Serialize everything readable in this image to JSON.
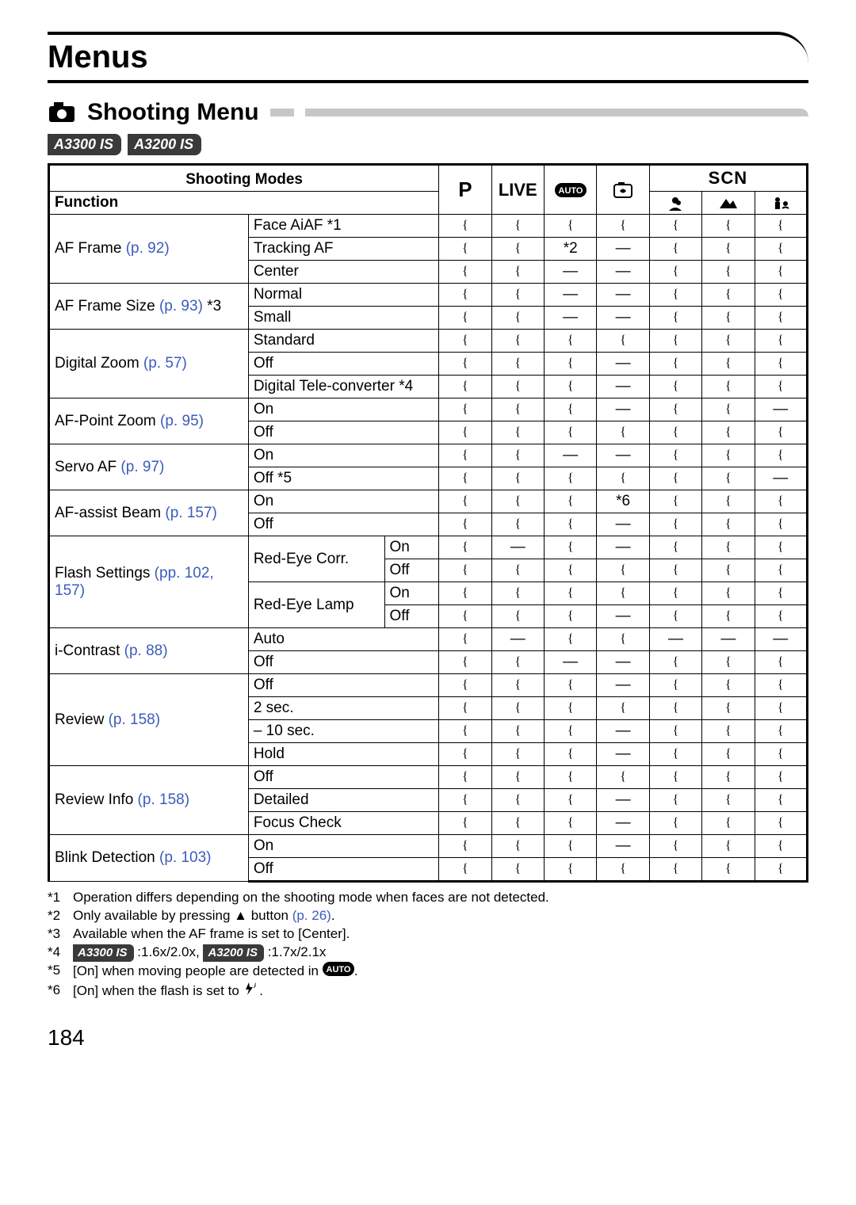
{
  "page": {
    "title": "Menus",
    "section": "Shooting Menu",
    "pageNumber": "184"
  },
  "models": [
    "A3300 IS",
    "A3200 IS"
  ],
  "header": {
    "shootingModes": "Shooting Modes",
    "function": "Function",
    "scn": "SCN",
    "P": "P",
    "live": "LIVE"
  },
  "symbols": {
    "circle": "{",
    "dash": "—"
  },
  "functions": [
    {
      "name": "AF Frame",
      "page": "(p. 92)",
      "options": [
        {
          "label": "Face AiAF *1",
          "vals": [
            "O",
            "O",
            "O",
            "O",
            "O",
            "O",
            "O"
          ]
        },
        {
          "label": "Tracking AF",
          "vals": [
            "O",
            "O",
            "*2",
            "-",
            "O",
            "O",
            "O"
          ]
        },
        {
          "label": "Center",
          "vals": [
            "O",
            "O",
            "-",
            "-",
            "O",
            "O",
            "O"
          ]
        }
      ]
    },
    {
      "name": "AF Frame Size",
      "page": "(p. 93)",
      "suffix": " *3",
      "options": [
        {
          "label": "Normal",
          "vals": [
            "O",
            "O",
            "-",
            "-",
            "O",
            "O",
            "O"
          ]
        },
        {
          "label": "Small",
          "vals": [
            "O",
            "O",
            "-",
            "-",
            "O",
            "O",
            "O"
          ]
        }
      ]
    },
    {
      "name": "Digital Zoom",
      "page": "(p. 57)",
      "options": [
        {
          "label": "Standard",
          "vals": [
            "O",
            "O",
            "O",
            "O",
            "O",
            "O",
            "O"
          ]
        },
        {
          "label": "Off",
          "vals": [
            "O",
            "O",
            "O",
            "-",
            "O",
            "O",
            "O"
          ]
        },
        {
          "label": "Digital Tele-converter *4",
          "vals": [
            "O",
            "O",
            "O",
            "-",
            "O",
            "O",
            "O"
          ]
        }
      ]
    },
    {
      "name": "AF-Point Zoom",
      "page": "(p. 95)",
      "options": [
        {
          "label": "On",
          "vals": [
            "O",
            "O",
            "O",
            "-",
            "O",
            "O",
            "-"
          ]
        },
        {
          "label": "Off",
          "vals": [
            "O",
            "O",
            "O",
            "O",
            "O",
            "O",
            "O"
          ]
        }
      ]
    },
    {
      "name": "Servo AF",
      "page": "(p. 97)",
      "options": [
        {
          "label": "On",
          "vals": [
            "O",
            "O",
            "-",
            "-",
            "O",
            "O",
            "O"
          ]
        },
        {
          "label": "Off *5",
          "vals": [
            "O",
            "O",
            "O",
            "O",
            "O",
            "O",
            "-"
          ]
        }
      ]
    },
    {
      "name": "AF-assist Beam",
      "page": "(p. 157)",
      "options": [
        {
          "label": "On",
          "vals": [
            "O",
            "O",
            "O",
            "*6",
            "O",
            "O",
            "O"
          ]
        },
        {
          "label": "Off",
          "vals": [
            "O",
            "O",
            "O",
            "-",
            "O",
            "O",
            "O"
          ]
        }
      ]
    },
    {
      "name": "Flash Settings",
      "page": "(pp. 102, 157)",
      "sub": [
        {
          "sublabel": "Red-Eye Corr.",
          "lines": [
            {
              "label": "On",
              "vals": [
                "O",
                "-",
                "O",
                "-",
                "O",
                "O",
                "O"
              ]
            },
            {
              "label": "Off",
              "vals": [
                "O",
                "O",
                "O",
                "O",
                "O",
                "O",
                "O"
              ]
            }
          ]
        },
        {
          "sublabel": "Red-Eye Lamp",
          "lines": [
            {
              "label": "On",
              "vals": [
                "O",
                "O",
                "O",
                "O",
                "O",
                "O",
                "O"
              ]
            },
            {
              "label": "Off",
              "vals": [
                "O",
                "O",
                "O",
                "-",
                "O",
                "O",
                "O"
              ]
            }
          ]
        }
      ]
    },
    {
      "name": "i-Contrast",
      "page": "(p. 88)",
      "options": [
        {
          "label": "Auto",
          "vals": [
            "O",
            "-",
            "O",
            "O",
            "-",
            "-",
            "-"
          ]
        },
        {
          "label": "Off",
          "vals": [
            "O",
            "O",
            "-",
            "-",
            "O",
            "O",
            "O"
          ]
        }
      ]
    },
    {
      "name": "Review",
      "page": "(p. 158)",
      "options": [
        {
          "label": "Off",
          "vals": [
            "O",
            "O",
            "O",
            "-",
            "O",
            "O",
            "O"
          ]
        },
        {
          "label": "2 sec.",
          "vals": [
            "O",
            "O",
            "O",
            "O",
            "O",
            "O",
            "O"
          ]
        },
        {
          "label": "– 10 sec.",
          "vals": [
            "O",
            "O",
            "O",
            "-",
            "O",
            "O",
            "O"
          ]
        },
        {
          "label": "Hold",
          "vals": [
            "O",
            "O",
            "O",
            "-",
            "O",
            "O",
            "O"
          ]
        }
      ]
    },
    {
      "name": "Review Info",
      "page": "(p. 158)",
      "options": [
        {
          "label": "Off",
          "vals": [
            "O",
            "O",
            "O",
            "O",
            "O",
            "O",
            "O"
          ]
        },
        {
          "label": "Detailed",
          "vals": [
            "O",
            "O",
            "O",
            "-",
            "O",
            "O",
            "O"
          ]
        },
        {
          "label": "Focus Check",
          "vals": [
            "O",
            "O",
            "O",
            "-",
            "O",
            "O",
            "O"
          ]
        }
      ]
    },
    {
      "name": "Blink Detection",
      "page": "(p. 103)",
      "options": [
        {
          "label": "On",
          "vals": [
            "O",
            "O",
            "O",
            "-",
            "O",
            "O",
            "O"
          ]
        },
        {
          "label": "Off",
          "vals": [
            "O",
            "O",
            "O",
            "O",
            "O",
            "O",
            "O"
          ]
        }
      ]
    }
  ],
  "footnotes": [
    {
      "idx": "*1",
      "text": "Operation differs depending on the shooting mode when faces are not detected."
    },
    {
      "idx": "*2",
      "text": "Only available by pressing ▲ button ",
      "page": "(p. 26)",
      "tail": "."
    },
    {
      "idx": "*3",
      "text": "Available when the AF frame is set to [Center]."
    },
    {
      "idx": "*4",
      "badges": true,
      "b1": "A3300 IS",
      "t1": ":1.6x/2.0x, ",
      "b2": "A3200 IS",
      "t2": ":1.7x/2.1x"
    },
    {
      "idx": "*5",
      "text": "[On] when moving people are detected in ",
      "autoIcon": true,
      "tail": "."
    },
    {
      "idx": "*6",
      "text": "[On] when the flash is set to ",
      "flashIcon": true,
      "tail": " ."
    }
  ],
  "columns": {
    "funcWidth": 220,
    "optWidth": 250,
    "valWidth": 60
  }
}
